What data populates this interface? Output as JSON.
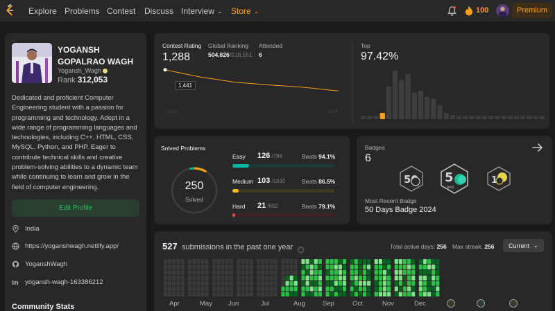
{
  "nav": {
    "links": [
      "Explore",
      "Problems",
      "Contest",
      "Discuss",
      "Interview",
      "Store"
    ],
    "streak": "100",
    "premium": "Premium"
  },
  "profile": {
    "name": "YOGANSH GOPALRAO WAGH",
    "username": "Yogansh_Wagh",
    "rank_label": "Rank",
    "rank_value": "312,053",
    "about": "Dedicated and proficient Computer Engineering student with a passion for programming and technology. Adept in a wide range of programming languages and technologies, including C++, HTML, CSS, MySQL, Python, and PHP. Eager to contribute technical skills and creative problem-solving abilities to a dynamic team while continuing to learn and grow in the field of computer engineering.",
    "edit_label": "Edit Profile",
    "location": "India",
    "website": "https://yoganshwagh.netlify.app/",
    "github": "YoganshWagh",
    "linkedin": "yogansh-wagh-163386212",
    "community_title": "Community Stats"
  },
  "contest": {
    "rating_label": "Contest Rating",
    "rating": "1,288",
    "global_label": "Global Ranking",
    "global_rank": "504,826",
    "global_total": "/518,551",
    "attended_label": "Attended",
    "attended": "6",
    "tooltip": "1,441",
    "axis_left": "2023",
    "axis_right": "2024",
    "top_label": "Top",
    "top_value": "97.42%",
    "rating_series": [
      1441,
      1390,
      1352,
      1332,
      1315,
      1288
    ],
    "histogram": [
      4,
      4,
      4,
      8,
      42,
      62,
      50,
      58,
      34,
      36,
      28,
      26,
      18,
      8,
      5,
      4,
      4,
      4,
      4,
      4,
      4,
      4,
      4,
      4,
      4,
      4,
      4,
      4,
      4
    ],
    "histogram_highlight_index": 3,
    "colors": {
      "line": "#ffa116",
      "bar": "#3e3e3e",
      "bar_highlight": "#ffa116"
    }
  },
  "solved": {
    "title": "Solved Problems",
    "total": "250",
    "total_label": "Solved",
    "difficulties": [
      {
        "name": "Easy",
        "count": "126",
        "total": "/786",
        "beats_label": "Beats",
        "beats": "94.1%",
        "fraction": 0.16,
        "color": "#00b8a3",
        "bg": "#1e3a36"
      },
      {
        "name": "Medium",
        "count": "103",
        "total": "/1630",
        "beats_label": "Beats",
        "beats": "86.5%",
        "fraction": 0.063,
        "color": "#ffc01e",
        "bg": "#3d3a20"
      },
      {
        "name": "Hard",
        "count": "21",
        "total": "/692",
        "beats_label": "Beats",
        "beats": "79.1%",
        "fraction": 0.03,
        "color": "#ef4743",
        "bg": "#3e2222"
      }
    ]
  },
  "badges": {
    "title": "Badges",
    "count": "6",
    "badge_icons": [
      "50-days-badge-2024-icon",
      "50-days-badge-icon",
      "100-days-badge-icon"
    ],
    "recent_label": "Most Recent Badge",
    "recent_name": "50 Days Badge 2024"
  },
  "submissions": {
    "count": "527",
    "label": "submissions in the past one year",
    "active_label": "Total active days:",
    "active_value": "256",
    "streak_label": "Max streak:",
    "streak_value": "256",
    "period": "Current",
    "months": [
      "Apr",
      "May",
      "Jun",
      "Jul",
      "Aug",
      "Sep",
      "Oct",
      "Nov",
      "Dec"
    ],
    "colors": {
      "empty": "#3a3a3a",
      "l1": "#016620",
      "l2": "#28c244",
      "l3": "#7fe18b"
    }
  }
}
